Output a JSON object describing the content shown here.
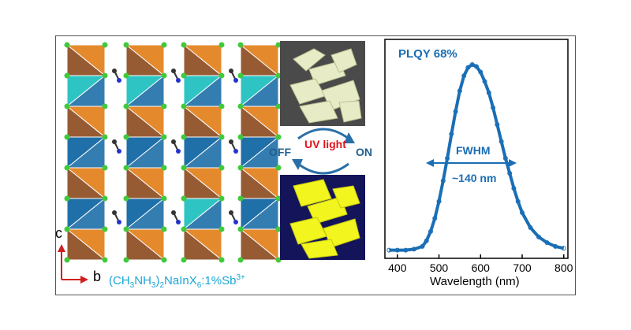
{
  "figure": {
    "formula": {
      "pre": "(CH",
      "s1": "3",
      "mid1": "NH",
      "s2": "3",
      "mid2": ")",
      "s3": "2",
      "mid3": "NaInX",
      "s4": "6",
      "mid4": ":1%Sb",
      "sup": "3+"
    },
    "axis_labels": {
      "c": "c",
      "b": "b"
    },
    "uv": {
      "text": "UV light",
      "off": "OFF",
      "on": "ON"
    },
    "colors": {
      "orange": "#e58a2c",
      "brown": "#8b4a1e",
      "blue": "#1f6fa8",
      "cyan": "#2ec4c4",
      "green_atom": "#41c93c",
      "curve": "#1a6eb5",
      "formula": "#1aa6d6",
      "uv_text": "#e0131b",
      "arrow": "#d11f1f"
    },
    "photos": [
      {
        "state": "off",
        "description": "crystals under ambient light"
      },
      {
        "state": "on",
        "description": "crystals under UV light, yellow emission"
      }
    ]
  },
  "chart_data": {
    "type": "line",
    "xlabel": "Wavelength (nm)",
    "ylabel": "",
    "xlim": [
      370,
      810
    ],
    "ylim": [
      0,
      1.0
    ],
    "xticks": [
      "400",
      "500",
      "600",
      "700",
      "800"
    ],
    "annotations": {
      "plqy": "PLQY 68%",
      "fwhm": "FWHM",
      "fwhm_value": "~140 nm"
    },
    "series": [
      {
        "x": [
          380,
          400,
          420,
          440,
          460,
          470,
          480,
          490,
          500,
          510,
          520,
          530,
          540,
          550,
          560,
          570,
          580,
          590,
          600,
          610,
          620,
          630,
          640,
          650,
          660,
          670,
          680,
          690,
          700,
          720,
          740,
          760,
          780,
          800
        ],
        "y": [
          0.01,
          0.01,
          0.01,
          0.015,
          0.03,
          0.06,
          0.11,
          0.18,
          0.27,
          0.38,
          0.5,
          0.63,
          0.75,
          0.86,
          0.94,
          0.985,
          1.0,
          0.99,
          0.96,
          0.91,
          0.85,
          0.77,
          0.68,
          0.59,
          0.5,
          0.42,
          0.34,
          0.27,
          0.21,
          0.13,
          0.08,
          0.05,
          0.03,
          0.02
        ]
      }
    ]
  }
}
